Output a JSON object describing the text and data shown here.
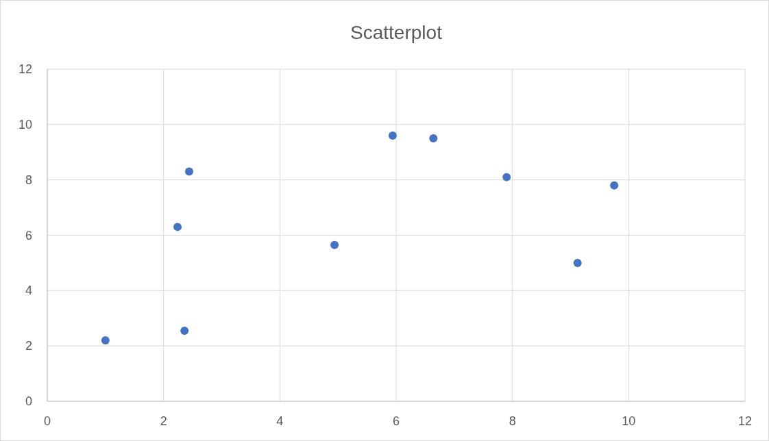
{
  "chart_data": {
    "type": "scatter",
    "title": "Scatterplot",
    "x": [
      1.0,
      2.36,
      2.24,
      2.44,
      4.94,
      5.94,
      6.64,
      7.9,
      9.12,
      9.75
    ],
    "series": [
      {
        "color": "#4472c4",
        "values": [
          2.2,
          2.55,
          6.3,
          8.3,
          5.65,
          9.6,
          9.5,
          8.1,
          5.0,
          7.8
        ]
      }
    ],
    "xlim": [
      0,
      12
    ],
    "xticks": [
      0,
      2,
      4,
      6,
      8,
      10,
      12
    ],
    "ylim": [
      0,
      12
    ],
    "yticks": [
      0,
      2,
      4,
      6,
      8,
      10,
      12
    ],
    "grid": true,
    "marker": "circle"
  }
}
